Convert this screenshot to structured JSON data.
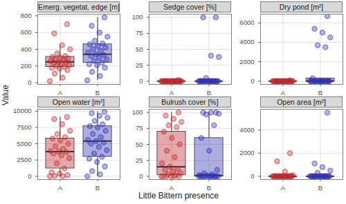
{
  "chart_data": {
    "type": "box",
    "x_label": "Little Bittern presence",
    "y_label": "Value",
    "panels": [
      {
        "type": "box",
        "title": "Emerg. vegetat. edge [m]",
        "categories": [
          "A",
          "B"
        ],
        "grid": true,
        "ylim": [
          -20,
          820
        ],
        "yticks": [
          0,
          200,
          400,
          600,
          800
        ],
        "series": [
          {
            "name": "A",
            "color": "#c0282d",
            "values": [
              20,
              60,
              110,
              150,
              170,
              180,
              190,
              200,
              210,
              230,
              240,
              250,
              250,
              260,
              270,
              280,
              290,
              300,
              310,
              320,
              350,
              400,
              450,
              590,
              700
            ]
          },
          {
            "name": "B",
            "color": "#3232b4",
            "values": [
              30,
              80,
              130,
              180,
              210,
              220,
              240,
              260,
              280,
              300,
              320,
              330,
              340,
              360,
              380,
              400,
              420,
              440,
              460,
              470,
              500,
              550,
              600,
              680,
              780
            ]
          }
        ]
      },
      {
        "type": "box",
        "title": "Sedge cover [%]",
        "categories": [
          "A",
          "B"
        ],
        "grid": true,
        "ylim": [
          -5,
          105
        ],
        "yticks": [
          0,
          25,
          50,
          75,
          100
        ],
        "series": [
          {
            "name": "A",
            "color": "#c0282d",
            "values": [
              0,
              0,
              0,
              0,
              0,
              0,
              0,
              0,
              0,
              0,
              0,
              0,
              0,
              0,
              0,
              0,
              0,
              0,
              0,
              0,
              0,
              0,
              0,
              0,
              2
            ]
          },
          {
            "name": "B",
            "color": "#3232b4",
            "values": [
              0,
              0,
              0,
              0,
              0,
              0,
              0,
              0,
              0,
              0,
              0,
              0,
              0,
              0,
              0,
              0,
              0,
              0,
              0,
              0,
              5,
              38,
              40,
              100,
              100
            ]
          }
        ]
      },
      {
        "type": "box",
        "title": "Dry pond [m²]",
        "categories": [
          "A",
          "B"
        ],
        "grid": true,
        "ylim": [
          -330,
          6900
        ],
        "yticks": [
          0,
          2000,
          4000,
          6000
        ],
        "series": [
          {
            "name": "A",
            "color": "#c0282d",
            "values": [
              0,
              0,
              0,
              0,
              0,
              0,
              0,
              0,
              0,
              0,
              0,
              0,
              0,
              0,
              0,
              0,
              0,
              0,
              0,
              0,
              0,
              0,
              0,
              0,
              100
            ]
          },
          {
            "name": "B",
            "color": "#3232b4",
            "values": [
              0,
              0,
              0,
              0,
              0,
              0,
              0,
              0,
              0,
              0,
              0,
              0,
              0,
              0,
              0,
              0,
              0,
              0,
              300,
              3500,
              3700,
              4500,
              5000,
              5400,
              6700
            ]
          }
        ]
      },
      {
        "type": "box",
        "title": "Open water [m²]",
        "categories": [
          "A",
          "B"
        ],
        "grid": true,
        "ylim": [
          -500,
          10300
        ],
        "yticks": [
          0,
          2500,
          5000,
          7500,
          10000
        ],
        "series": [
          {
            "name": "A",
            "color": "#c0282d",
            "values": [
              0,
              0,
              50,
              200,
              400,
              600,
              1200,
              2000,
              2800,
              3200,
              3500,
              3700,
              3800,
              3900,
              4200,
              4600,
              5000,
              5500,
              5800,
              6000,
              6500,
              7000,
              8000,
              8800,
              9100
            ]
          },
          {
            "name": "B",
            "color": "#3232b4",
            "values": [
              0,
              300,
              800,
              1500,
              2200,
              2700,
              3000,
              3500,
              4000,
              4500,
              5000,
              5200,
              5400,
              5600,
              6000,
              6500,
              7000,
              7500,
              7700,
              8000,
              8500,
              9000,
              9300,
              9700,
              9900
            ]
          }
        ]
      },
      {
        "type": "box",
        "title": "Bulrush cover [%]",
        "categories": [
          "A",
          "B"
        ],
        "grid": true,
        "ylim": [
          -5,
          105
        ],
        "yticks": [
          0,
          25,
          50,
          75,
          100
        ],
        "series": [
          {
            "name": "A",
            "color": "#c0282d",
            "values": [
              0,
              0,
              0,
              0,
              0,
              0,
              2,
              3,
              5,
              8,
              10,
              12,
              15,
              20,
              30,
              40,
              50,
              60,
              70,
              77,
              80,
              85,
              90,
              95,
              100
            ]
          },
          {
            "name": "B",
            "color": "#3232b4",
            "values": [
              0,
              0,
              0,
              0,
              0,
              0,
              0,
              0,
              0,
              0,
              0,
              0,
              1,
              2,
              3,
              5,
              10,
              40,
              60,
              80,
              97,
              98,
              100,
              100,
              100
            ]
          }
        ]
      },
      {
        "type": "box",
        "title": "Open area [m²]",
        "categories": [
          "A",
          "B"
        ],
        "grid": true,
        "ylim": [
          -280,
          5800
        ],
        "yticks": [
          0,
          2000,
          4000
        ],
        "series": [
          {
            "name": "A",
            "color": "#c0282d",
            "values": [
              0,
              0,
              0,
              0,
              0,
              0,
              0,
              0,
              0,
              0,
              0,
              0,
              0,
              0,
              0,
              0,
              0,
              0,
              0,
              0,
              0,
              100,
              400,
              1300,
              2000
            ]
          },
          {
            "name": "B",
            "color": "#3232b4",
            "values": [
              0,
              0,
              0,
              0,
              0,
              0,
              0,
              0,
              0,
              0,
              0,
              0,
              0,
              0,
              0,
              0,
              0,
              0,
              0,
              0,
              300,
              500,
              800,
              1100,
              5500
            ]
          }
        ]
      }
    ]
  }
}
